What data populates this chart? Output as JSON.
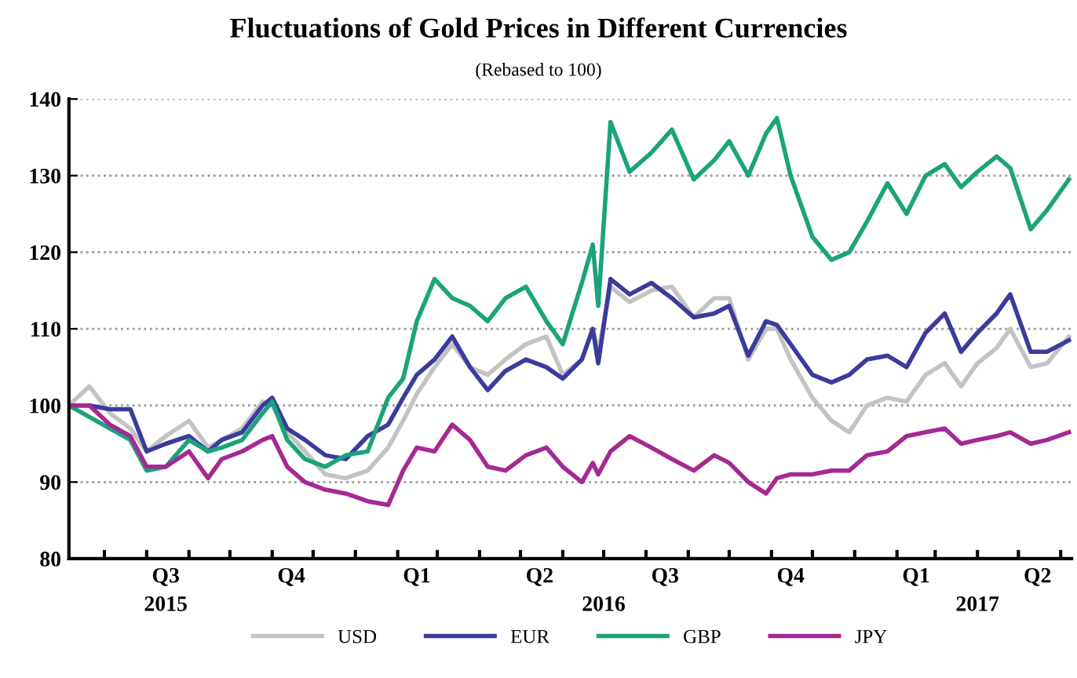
{
  "chart_data": {
    "type": "line",
    "title": "Fluctuations of Gold Prices in Different Currencies",
    "subtitle": "(Rebased to 100)",
    "x": [
      "2015-06-05",
      "2015-06-20",
      "2015-07-05",
      "2015-07-20",
      "2015-08-01",
      "2015-08-15",
      "2015-09-01",
      "2015-09-15",
      "2015-09-25",
      "2015-10-10",
      "2015-10-25",
      "2015-11-01",
      "2015-11-12",
      "2015-11-25",
      "2015-12-10",
      "2015-12-25",
      "2016-01-10",
      "2016-01-25",
      "2016-02-05",
      "2016-02-15",
      "2016-02-28",
      "2016-03-12",
      "2016-03-25",
      "2016-04-07",
      "2016-04-20",
      "2016-05-05",
      "2016-05-20",
      "2016-06-01",
      "2016-06-15",
      "2016-06-23",
      "2016-06-27",
      "2016-07-06",
      "2016-07-20",
      "2016-08-05",
      "2016-08-20",
      "2016-09-05",
      "2016-09-20",
      "2016-10-01",
      "2016-10-15",
      "2016-10-28",
      "2016-11-05",
      "2016-11-15",
      "2016-12-01",
      "2016-12-15",
      "2016-12-28",
      "2017-01-10",
      "2017-01-25",
      "2017-02-08",
      "2017-02-22",
      "2017-03-08",
      "2017-03-20",
      "2017-04-01",
      "2017-04-15",
      "2017-04-25",
      "2017-05-10",
      "2017-05-22",
      "2017-06-07"
    ],
    "series": [
      {
        "name": "USD",
        "color": "#c3c3c3",
        "values": [
          100,
          102.5,
          99,
          97,
          94,
          96,
          98,
          94.5,
          95.5,
          97,
          100.5,
          100,
          96.5,
          94,
          91,
          90.5,
          91.5,
          94.5,
          98,
          101.5,
          105,
          108,
          105,
          104,
          106,
          108,
          109,
          104,
          106,
          110,
          107,
          115.5,
          113.5,
          115,
          115.5,
          111.5,
          114,
          114,
          106,
          110,
          110,
          106,
          101,
          98,
          96.5,
          100,
          101,
          100.5,
          104,
          105.5,
          102.5,
          105.5,
          107.5,
          110,
          105,
          105.5,
          109
        ]
      },
      {
        "name": "EUR",
        "color": "#3b3b9c",
        "values": [
          100,
          100,
          99.5,
          99.5,
          94,
          95,
          96,
          94,
          95.5,
          96.5,
          100,
          101,
          97,
          95.5,
          93.5,
          93,
          96,
          97.5,
          101,
          104,
          106,
          109,
          105,
          102,
          104.5,
          106,
          105,
          103.5,
          106,
          110,
          105.5,
          116.5,
          114.5,
          116,
          114,
          111.5,
          112,
          113,
          106.5,
          111,
          110.5,
          108,
          104,
          103,
          104,
          106,
          106.5,
          105,
          109.5,
          112,
          107,
          109.5,
          112,
          114.5,
          107,
          107,
          108.5
        ]
      },
      {
        "name": "GBP",
        "color": "#1ba37b",
        "values": [
          100,
          98.5,
          97,
          95.5,
          91.5,
          92,
          95.5,
          94,
          94.5,
          95.5,
          99,
          100.5,
          95.5,
          93,
          92,
          93.5,
          94,
          101,
          103.5,
          111,
          116.5,
          114,
          113,
          111,
          114,
          115.5,
          111,
          108,
          116,
          121,
          113,
          137,
          130.5,
          133,
          136,
          129.5,
          132,
          134.5,
          130,
          135.5,
          137.5,
          130,
          122,
          119,
          120,
          124,
          129,
          125,
          130,
          131.5,
          128.5,
          130.5,
          132.5,
          131,
          123,
          125.5,
          129.5
        ]
      },
      {
        "name": "JPY",
        "color": "#a42a92",
        "values": [
          100,
          100,
          97.5,
          96,
          92,
          92,
          94,
          90.5,
          93,
          94,
          95.5,
          96,
          92,
          90,
          89,
          88.5,
          87.5,
          87,
          91.5,
          94.5,
          94,
          97.5,
          95.5,
          92,
          91.5,
          93.5,
          94.5,
          92,
          90,
          92.5,
          91,
          94,
          96,
          94.5,
          93,
          91.5,
          93.5,
          92.5,
          90,
          88.5,
          90.5,
          91,
          91,
          91.5,
          91.5,
          93.5,
          94,
          96,
          96.5,
          97,
          95,
          95.5,
          96,
          96.5,
          95,
          95.5,
          96.5
        ]
      }
    ],
    "xlim": [
      "2015-06-05",
      "2017-06-09"
    ],
    "xticks": [
      {
        "value": "2015-08-15",
        "label": "Q3"
      },
      {
        "value": "2015-11-15",
        "label": "Q4"
      },
      {
        "value": "2016-02-15",
        "label": "Q1"
      },
      {
        "value": "2016-05-15",
        "label": "Q2"
      },
      {
        "value": "2016-08-15",
        "label": "Q3"
      },
      {
        "value": "2016-11-15",
        "label": "Q4"
      },
      {
        "value": "2017-02-15",
        "label": "Q1"
      },
      {
        "value": "2017-05-15",
        "label": "Q2"
      },
      {
        "value": "2015-07-01",
        "label": null
      },
      {
        "value": "2015-08-01",
        "label": null
      },
      {
        "value": "2015-09-01",
        "label": null
      },
      {
        "value": "2015-10-01",
        "label": null
      },
      {
        "value": "2015-11-01",
        "label": null
      },
      {
        "value": "2015-12-01",
        "label": null
      },
      {
        "value": "2016-01-01",
        "label": null
      },
      {
        "value": "2016-02-01",
        "label": null
      },
      {
        "value": "2016-03-01",
        "label": null
      },
      {
        "value": "2016-04-01",
        "label": null
      },
      {
        "value": "2016-05-01",
        "label": null
      },
      {
        "value": "2016-06-01",
        "label": null
      },
      {
        "value": "2016-07-01",
        "label": null
      },
      {
        "value": "2016-08-01",
        "label": null
      },
      {
        "value": "2016-09-01",
        "label": null
      },
      {
        "value": "2016-10-01",
        "label": null
      },
      {
        "value": "2016-11-01",
        "label": null
      },
      {
        "value": "2016-12-01",
        "label": null
      },
      {
        "value": "2017-01-01",
        "label": null
      },
      {
        "value": "2017-02-01",
        "label": null
      },
      {
        "value": "2017-03-01",
        "label": null
      },
      {
        "value": "2017-04-01",
        "label": null
      },
      {
        "value": "2017-05-01",
        "label": null
      },
      {
        "value": "2017-06-01",
        "label": null
      }
    ],
    "x2lim": [
      "2015-06-05",
      "2017-06-09"
    ],
    "x2ticks": [
      {
        "value": "2015-08-15",
        "label": "2015"
      },
      {
        "value": "2016-07-01",
        "label": "2016"
      },
      {
        "value": "2017-04-01",
        "label": "2017"
      }
    ],
    "ylim": [
      80,
      140
    ],
    "yticks": [
      80,
      90,
      100,
      110,
      120,
      130,
      140
    ],
    "grid": "y",
    "legend": "bottom",
    "marker": "none",
    "line_style": "solid"
  }
}
